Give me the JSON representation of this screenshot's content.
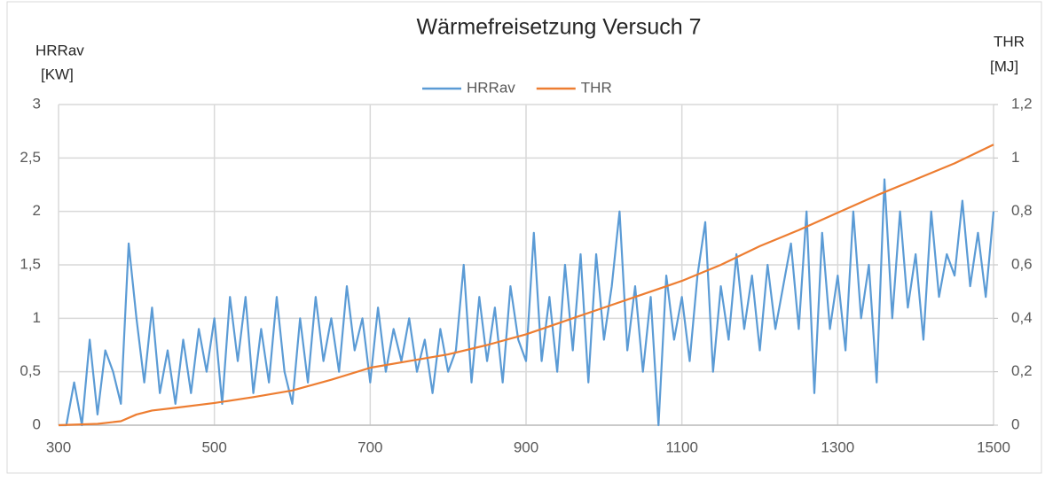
{
  "chart_data": {
    "type": "line",
    "title": "Wärmefreisetzung Versuch 7",
    "ylabel": [
      "HRRav",
      "[KW]"
    ],
    "y2label": [
      "THR",
      "[MJ]"
    ],
    "xlim": [
      300,
      1500
    ],
    "xticks": [
      300,
      500,
      700,
      900,
      1100,
      1300,
      1500
    ],
    "ylim": [
      0,
      3
    ],
    "yticks": [
      0,
      {
        "value": 0.5,
        "label": "0,5"
      },
      1,
      {
        "value": 1.5,
        "label": "1,5"
      },
      2,
      {
        "value": 2.5,
        "label": "2,5"
      },
      3
    ],
    "y2lim": [
      0,
      1.2
    ],
    "y2ticks": [
      0,
      {
        "value": 0.2,
        "label": "0,2"
      },
      {
        "value": 0.4,
        "label": "0,4"
      },
      {
        "value": 0.6,
        "label": "0,6"
      },
      {
        "value": 0.8,
        "label": "0,8"
      },
      1,
      {
        "value": 1.2,
        "label": "1,2"
      }
    ],
    "grid": true,
    "legend": "top",
    "series": [
      {
        "name": "HRRav",
        "color": "#5b9bd5",
        "x": [
          300,
          310,
          320,
          330,
          340,
          350,
          360,
          370,
          380,
          390,
          400,
          410,
          420,
          430,
          440,
          450,
          460,
          470,
          480,
          490,
          500,
          510,
          520,
          530,
          540,
          550,
          560,
          570,
          580,
          590,
          600,
          610,
          620,
          630,
          640,
          650,
          660,
          670,
          680,
          690,
          700,
          710,
          720,
          730,
          740,
          750,
          760,
          770,
          780,
          790,
          800,
          810,
          820,
          830,
          840,
          850,
          860,
          870,
          880,
          890,
          900,
          910,
          920,
          930,
          940,
          950,
          960,
          970,
          980,
          990,
          1000,
          1010,
          1020,
          1030,
          1040,
          1050,
          1060,
          1070,
          1080,
          1090,
          1100,
          1110,
          1120,
          1130,
          1140,
          1150,
          1160,
          1170,
          1180,
          1190,
          1200,
          1210,
          1220,
          1230,
          1240,
          1250,
          1260,
          1270,
          1280,
          1290,
          1300,
          1310,
          1320,
          1330,
          1340,
          1350,
          1360,
          1370,
          1380,
          1390,
          1400,
          1410,
          1420,
          1430,
          1440,
          1450,
          1460,
          1470,
          1480,
          1490,
          1500
        ],
        "values": [
          0,
          0,
          0.4,
          0,
          0.8,
          0.1,
          0.7,
          0.5,
          0.2,
          1.7,
          1.0,
          0.4,
          1.1,
          0.3,
          0.7,
          0.2,
          0.8,
          0.3,
          0.9,
          0.5,
          1.0,
          0.2,
          1.2,
          0.6,
          1.2,
          0.3,
          0.9,
          0.4,
          1.2,
          0.5,
          0.2,
          1.0,
          0.4,
          1.2,
          0.6,
          1.0,
          0.5,
          1.3,
          0.7,
          1.0,
          0.4,
          1.1,
          0.5,
          0.9,
          0.6,
          1.0,
          0.5,
          0.8,
          0.3,
          0.9,
          0.5,
          0.7,
          1.5,
          0.4,
          1.2,
          0.6,
          1.1,
          0.4,
          1.3,
          0.8,
          0.6,
          1.8,
          0.6,
          1.2,
          0.5,
          1.5,
          0.7,
          1.6,
          0.4,
          1.6,
          0.8,
          1.3,
          2.0,
          0.7,
          1.3,
          0.5,
          1.2,
          0.0,
          1.4,
          0.8,
          1.2,
          0.6,
          1.4,
          1.9,
          0.5,
          1.3,
          0.8,
          1.6,
          0.9,
          1.4,
          0.7,
          1.5,
          0.9,
          1.3,
          1.7,
          0.9,
          2.0,
          0.3,
          1.8,
          0.9,
          1.4,
          0.7,
          2.0,
          1.0,
          1.5,
          0.4,
          2.3,
          1.0,
          2.0,
          1.1,
          1.6,
          0.8,
          2.0,
          1.2,
          1.6,
          1.4,
          2.1,
          1.3,
          1.8,
          1.2,
          2.0
        ]
      },
      {
        "name": "THR",
        "color": "#ed7d31",
        "axis": "y2",
        "x": [
          300,
          350,
          380,
          400,
          420,
          450,
          500,
          550,
          600,
          650,
          700,
          750,
          800,
          850,
          900,
          950,
          1000,
          1050,
          1100,
          1150,
          1200,
          1250,
          1300,
          1350,
          1400,
          1450,
          1500
        ],
        "values": [
          0,
          0.005,
          0.015,
          0.04,
          0.055,
          0.065,
          0.083,
          0.105,
          0.13,
          0.17,
          0.215,
          0.24,
          0.265,
          0.3,
          0.34,
          0.39,
          0.44,
          0.49,
          0.54,
          0.6,
          0.67,
          0.73,
          0.795,
          0.86,
          0.92,
          0.98,
          1.05
        ]
      }
    ]
  }
}
